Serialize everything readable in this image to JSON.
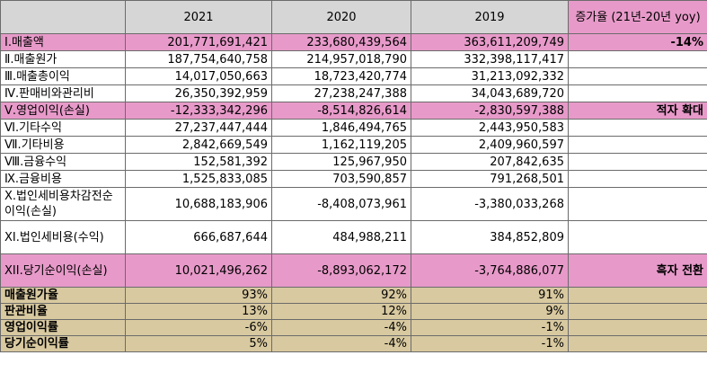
{
  "header": {
    "years": [
      "2021",
      "2020",
      "2019"
    ],
    "yoy_label": "증가율 (21년-20년 yoy)"
  },
  "rows": [
    {
      "label": "Ⅰ.매출액",
      "v2021": "201,771,691,421",
      "v2020": "233,680,439,564",
      "v2019": "363,611,209,749",
      "yoy": "-14%"
    },
    {
      "label": "Ⅱ.매출원가",
      "v2021": "187,754,640,758",
      "v2020": "214,957,018,790",
      "v2019": "332,398,117,417",
      "yoy": ""
    },
    {
      "label": "Ⅲ.매출총이익",
      "v2021": "14,017,050,663",
      "v2020": "18,723,420,774",
      "v2019": "31,213,092,332",
      "yoy": ""
    },
    {
      "label": "Ⅳ.판매비와관리비",
      "v2021": "26,350,392,959",
      "v2020": "27,238,247,388",
      "v2019": "34,043,689,720",
      "yoy": ""
    },
    {
      "label": "Ⅴ.영업이익(손실)",
      "v2021": "-12,333,342,296",
      "v2020": "-8,514,826,614",
      "v2019": "-2,830,597,388",
      "yoy": "적자 확대"
    },
    {
      "label": "Ⅵ.기타수익",
      "v2021": "27,237,447,444",
      "v2020": "1,846,494,765",
      "v2019": "2,443,950,583",
      "yoy": ""
    },
    {
      "label": "Ⅶ.기타비용",
      "v2021": "2,842,669,549",
      "v2020": "1,162,119,205",
      "v2019": "2,409,960,597",
      "yoy": ""
    },
    {
      "label": "Ⅷ.금융수익",
      "v2021": "152,581,392",
      "v2020": "125,967,950",
      "v2019": "207,842,635",
      "yoy": ""
    },
    {
      "label": "Ⅸ.금융비용",
      "v2021": "1,525,833,085",
      "v2020": "703,590,857",
      "v2019": "791,268,501",
      "yoy": ""
    },
    {
      "label": "Ⅹ.법인세비용차감전순이익(손실)",
      "v2021": "10,688,183,906",
      "v2020": "-8,408,073,961",
      "v2019": "-3,380,033,268",
      "yoy": ""
    },
    {
      "label": "XI.법인세비용(수익)",
      "v2021": "666,687,644",
      "v2020": "484,988,211",
      "v2019": "384,852,809",
      "yoy": ""
    },
    {
      "label": "XII.당기순이익(손실)",
      "v2021": "10,021,496,262",
      "v2020": "-8,893,062,172",
      "v2019": "-3,764,886,077",
      "yoy": "흑자 전환"
    }
  ],
  "ratios": [
    {
      "label": "매출원가율",
      "v2021": "93%",
      "v2020": "92%",
      "v2019": "91%"
    },
    {
      "label": "판관비율",
      "v2021": "13%",
      "v2020": "12%",
      "v2019": "9%"
    },
    {
      "label": "영업이익률",
      "v2021": "-6%",
      "v2020": "-4%",
      "v2019": "-1%"
    },
    {
      "label": "당기순이익률",
      "v2021": "5%",
      "v2020": "-4%",
      "v2019": "-1%"
    }
  ]
}
